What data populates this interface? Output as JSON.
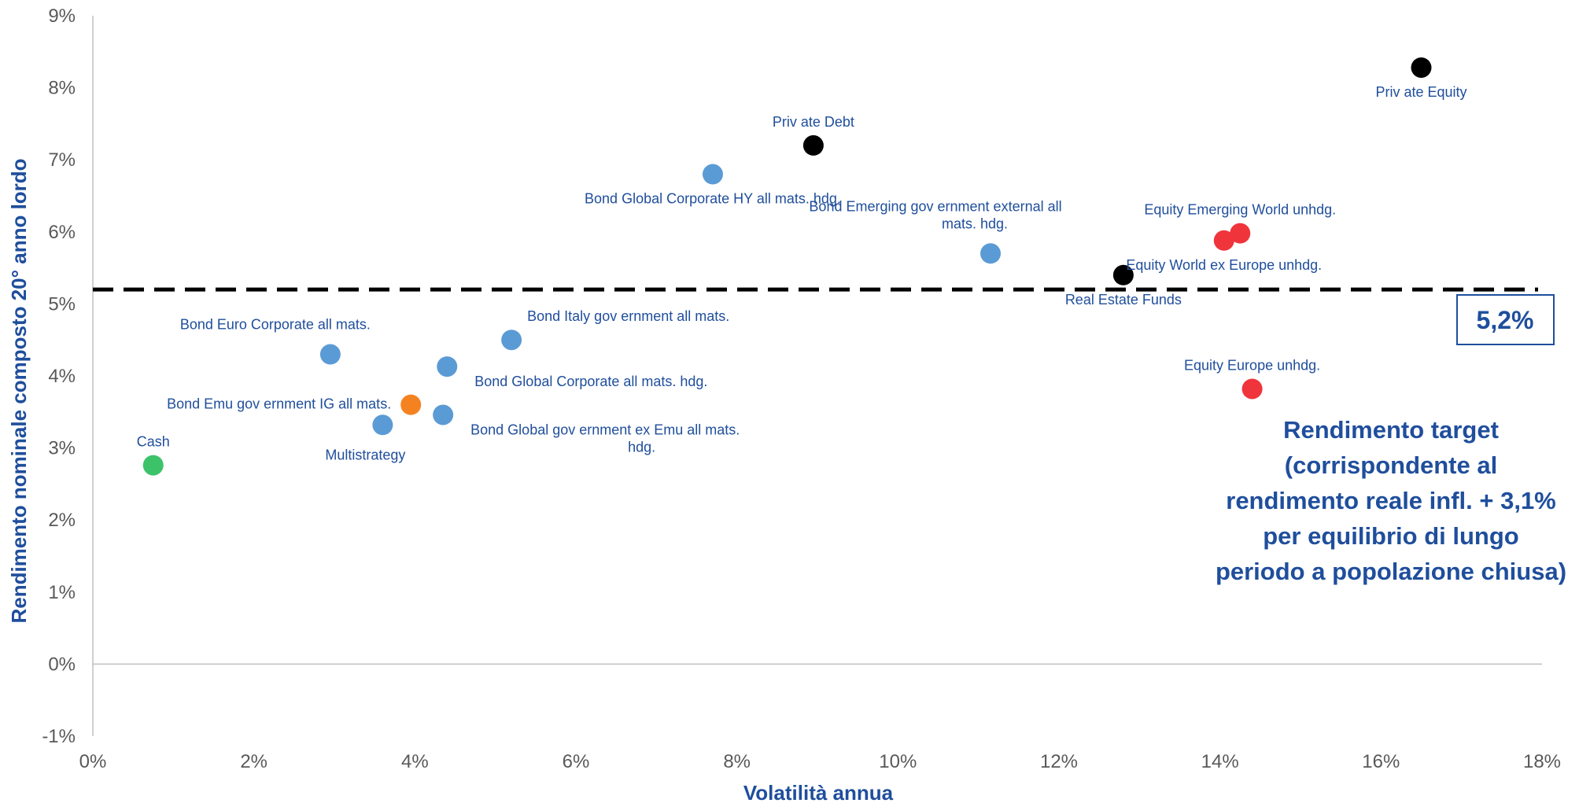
{
  "chart_data": {
    "type": "scatter",
    "xlabel": "Volatilità annua",
    "ylabel": "Rendimento nominale composto 20° anno lordo",
    "xlim": [
      0,
      18
    ],
    "ylim": [
      -1,
      9
    ],
    "x_ticks": [
      "0%",
      "2%",
      "4%",
      "6%",
      "8%",
      "10%",
      "12%",
      "14%",
      "16%",
      "18%"
    ],
    "y_ticks": [
      "-1%",
      "0%",
      "1%",
      "2%",
      "3%",
      "4%",
      "5%",
      "6%",
      "7%",
      "8%",
      "9%"
    ],
    "colors": {
      "bond": "#5b9bd5",
      "black": "#000000",
      "equity": "#f0343c",
      "cash": "#3cc36a",
      "multistrategy": "#f58220",
      "label": "#1f4e9c",
      "tick": "#595959"
    },
    "points": [
      {
        "label": "Cash",
        "x": 0.75,
        "y": 2.76,
        "color": "cash",
        "anchor": "above"
      },
      {
        "label": "Multistrategy",
        "x": 3.6,
        "y": 3.32,
        "color": "bond",
        "anchor": "below-left"
      },
      {
        "label": "Bond Emu gov ernment IG all mats.",
        "x": 3.95,
        "y": 3.6,
        "color": "multistrategy",
        "anchor": "left"
      },
      {
        "label": "Bond Euro Corporate all mats.",
        "x": 2.95,
        "y": 4.3,
        "color": "bond",
        "anchor": "above-left"
      },
      {
        "label": "Bond Global gov ernment ex Emu all mats. hdg.",
        "x": 4.35,
        "y": 3.46,
        "color": "bond",
        "anchor": "right-below"
      },
      {
        "label": "Bond Global Corporate all mats. hdg.",
        "x": 4.4,
        "y": 4.13,
        "color": "bond",
        "anchor": "right-below"
      },
      {
        "label": "Bond Italy gov ernment all mats.",
        "x": 5.2,
        "y": 4.5,
        "color": "bond",
        "anchor": "above-right"
      },
      {
        "label": "Bond Global Corporate HY all mats. hdg.",
        "x": 7.7,
        "y": 6.8,
        "color": "bond",
        "anchor": "below"
      },
      {
        "label": "Priv ate Debt",
        "x": 8.95,
        "y": 7.2,
        "color": "black",
        "anchor": "above"
      },
      {
        "label": "Bond Emerging gov ernment external all mats. hdg.",
        "x": 11.15,
        "y": 5.7,
        "color": "bond",
        "anchor": "above-left"
      },
      {
        "label": "Real Estate Funds",
        "x": 12.8,
        "y": 5.4,
        "color": "black",
        "anchor": "below"
      },
      {
        "label": "Equity Emerging World unhdg.",
        "x": 14.25,
        "y": 5.98,
        "color": "equity",
        "anchor": "above"
      },
      {
        "label": "Equity World ex Europe unhdg.",
        "x": 14.05,
        "y": 5.88,
        "color": "equity",
        "anchor": "below"
      },
      {
        "label": "Equity Europe unhdg.",
        "x": 14.4,
        "y": 3.82,
        "color": "equity",
        "anchor": "above"
      },
      {
        "label": "Priv ate Equity",
        "x": 16.5,
        "y": 8.28,
        "color": "black",
        "anchor": "below"
      }
    ],
    "target_line": {
      "y": 5.2,
      "label": "5,2%"
    },
    "annotation": [
      "Rendimento target",
      "(corrispondente al",
      "rendimento reale infl. + 3,1%",
      "per equilibrio di lungo",
      "periodo a popolazione chiusa)"
    ]
  }
}
